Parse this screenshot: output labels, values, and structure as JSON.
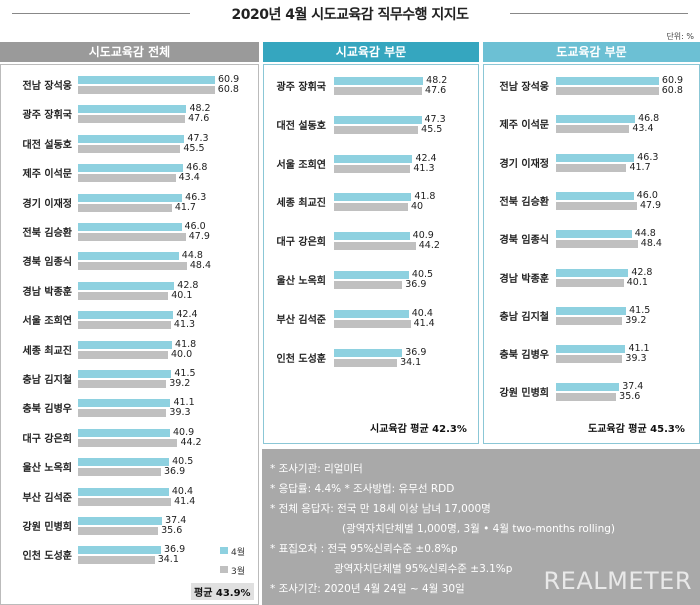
{
  "title": "2020년 4월 시도교육감 직무수행 지지도",
  "unit": "단위: %",
  "colors": {
    "april": "#8ed1e0",
    "march": "#c0c0c0",
    "header_left": "#9a9a9a",
    "header_mid": "#35a6bf",
    "header_right": "#6cc0d4",
    "notes_bg": "#a9a9a9"
  },
  "legend": {
    "april": "4월",
    "march": "3월"
  },
  "chart_data": [
    {
      "type": "bar",
      "title": "시도교육감 전체",
      "categories": [
        "전남 장석웅",
        "광주 장휘국",
        "대전 설동호",
        "제주 이석문",
        "경기 이재정",
        "전북 김승환",
        "경북 임종식",
        "경남 박종훈",
        "서울 조희연",
        "세종 최교진",
        "충남 김지철",
        "충북 김병우",
        "대구 강은희",
        "울산 노옥희",
        "부산 김석준",
        "강원 민병희",
        "인천 도성훈"
      ],
      "series": [
        {
          "name": "4월",
          "values": [
            60.9,
            48.2,
            47.3,
            46.8,
            46.3,
            46.0,
            44.8,
            42.8,
            42.4,
            41.8,
            41.5,
            41.1,
            40.9,
            40.5,
            40.4,
            37.4,
            36.9
          ]
        },
        {
          "name": "3월",
          "values": [
            "60.8",
            "47.6",
            "45.5",
            "43.4",
            "41.7",
            "47.9",
            "48.4",
            "40.1",
            "41.3",
            "40.0",
            "39.2",
            "39.3",
            "44.2",
            "36.9",
            "41.4",
            "35.6",
            "34.1"
          ]
        }
      ],
      "labels_apr": [
        "60.9",
        "48.2",
        "47.3",
        "46.8",
        "46.3",
        "46.0",
        "44.8",
        "42.8",
        "42.4",
        "41.8",
        "41.5",
        "41.1",
        "40.9",
        "40.5",
        "40.4",
        "37.4",
        "36.9"
      ],
      "labels_mar": [
        "60.8",
        "47.6",
        "45.5",
        "43.4",
        "41.7",
        "47.9",
        "48.4",
        "40.1",
        "41.3",
        "40.0",
        "39.2",
        "39.3",
        "44.2",
        "36.9",
        "41.4",
        "35.6",
        "34.1"
      ],
      "average": "평균 43.9%"
    },
    {
      "type": "bar",
      "title": "시교육감 부문",
      "categories": [
        "광주 장휘국",
        "대전 설동호",
        "서울 조희연",
        "세종 최교진",
        "대구 강은희",
        "울산 노옥희",
        "부산 김석준",
        "인천 도성훈"
      ],
      "series": [
        {
          "name": "4월",
          "values": [
            48.2,
            47.3,
            42.4,
            41.8,
            40.9,
            40.5,
            40.4,
            36.9
          ]
        },
        {
          "name": "3월",
          "values": [
            47.6,
            45.5,
            41.3,
            40,
            44.2,
            36.9,
            41.4,
            34.1
          ]
        }
      ],
      "labels_apr": [
        "48.2",
        "47.3",
        "42.4",
        "41.8",
        "40.9",
        "40.5",
        "40.4",
        "36.9"
      ],
      "labels_mar": [
        "47.6",
        "45.5",
        "41.3",
        "40",
        "44.2",
        "36.9",
        "41.4",
        "34.1"
      ],
      "average": "시교육감 평균 42.3%"
    },
    {
      "type": "bar",
      "title": "도교육감 부문",
      "categories": [
        "전남 장석웅",
        "제주 이석문",
        "경기 이재정",
        "전북 김승환",
        "경북 임종식",
        "경남 박종훈",
        "충남 김지철",
        "충북 김병우",
        "강원 민병희"
      ],
      "series": [
        {
          "name": "4월",
          "values": [
            60.9,
            46.8,
            46.3,
            46.0,
            44.8,
            42.8,
            41.5,
            41.1,
            37.4
          ]
        },
        {
          "name": "3월",
          "values": [
            60.8,
            43.4,
            41.7,
            47.9,
            48.4,
            40.1,
            39.2,
            39.3,
            35.6
          ]
        }
      ],
      "labels_apr": [
        "60.9",
        "46.8",
        "46.3",
        "46.0",
        "44.8",
        "42.8",
        "41.5",
        "41.1",
        "37.4"
      ],
      "labels_mar": [
        "60.8",
        "43.4",
        "41.7",
        "47.9",
        "48.4",
        "40.1",
        "39.2",
        "39.3",
        "35.6"
      ],
      "average": "도교육감 평균 45.3%"
    }
  ],
  "notes": [
    "* 조사기관: 리얼미터",
    "* 응답률: 4.4% * 조사방법: 유무선 RDD",
    "* 전체 응답자: 전국 만 18세 이상 남녀 17,000명",
    "(광역자치단체별 1,000명, 3월 • 4월 two-months rolling)",
    "* 표집오차 : 전국 95%신뢰수준 ±0.8%p",
    "광역자치단체별 95%신뢰수준 ±3.1%p",
    "* 조사기간: 2020년 4월 24일 ~ 4월 30일"
  ],
  "brand": "REALMETER"
}
